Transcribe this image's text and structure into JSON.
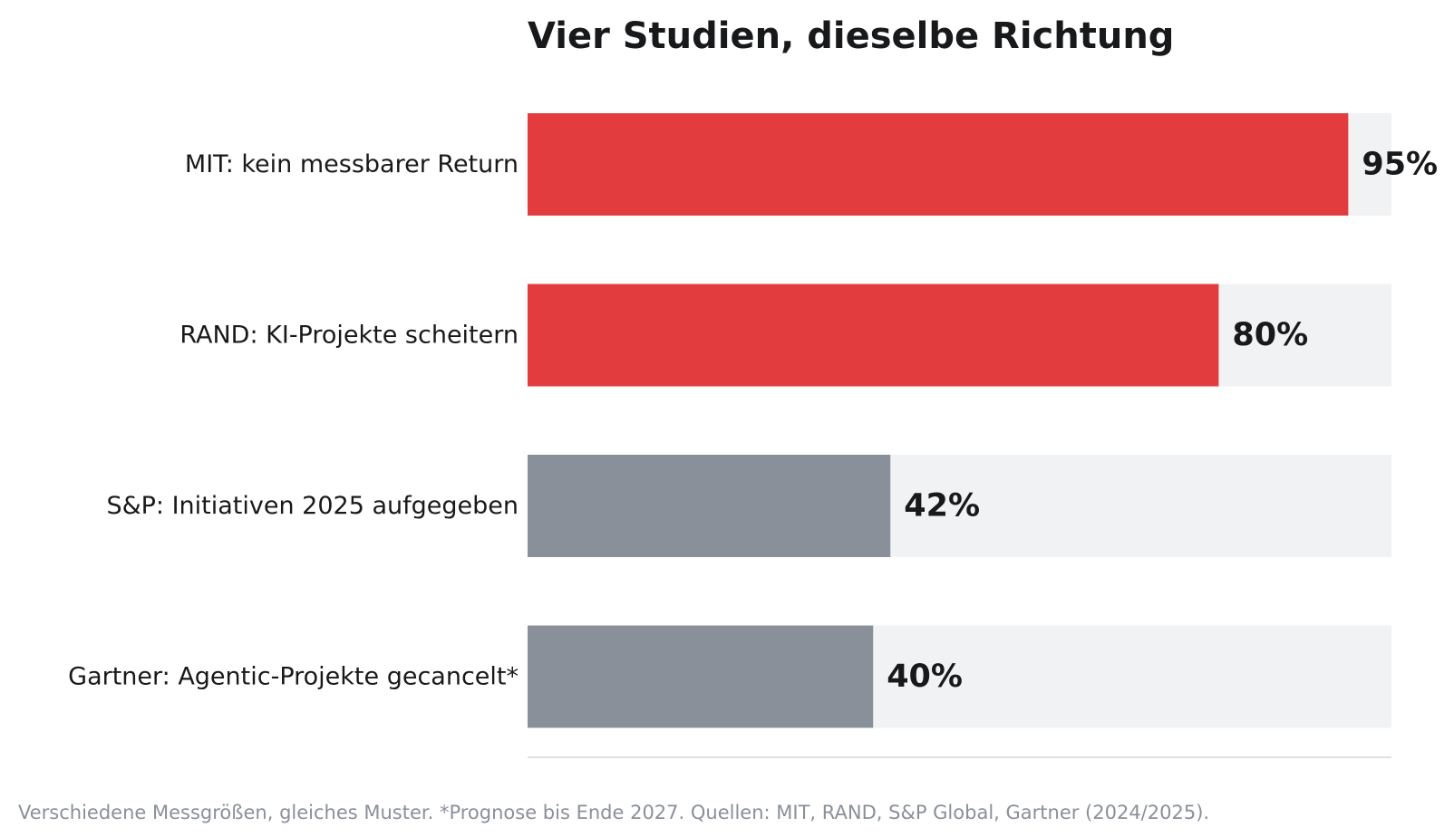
{
  "chart_data": {
    "type": "bar",
    "orientation": "horizontal",
    "title": "Vier Studien, dieselbe Richtung",
    "categories": [
      "MIT: kein messbarer Return",
      "RAND: KI-Projekte scheitern",
      "S&P: Initiativen 2025 aufgegeben",
      "Gartner: Agentic-Projekte gecancelt*"
    ],
    "values": [
      95,
      80,
      42,
      40
    ],
    "value_labels": [
      "95%",
      "80%",
      "42%",
      "40%"
    ],
    "xlim": [
      0,
      100
    ],
    "unit": "%",
    "grid": false,
    "legend": "none",
    "colors": {
      "highlight": "#e23c3e",
      "neutral": "#8a9099",
      "track": "#f1f2f4",
      "axis": "#e0e0e0",
      "text": "#18191b",
      "muted": "#8a9099"
    },
    "bar_colors": [
      "#e23c3e",
      "#e23c3e",
      "#8a9099",
      "#8a9099"
    ],
    "footnote": "Verschiedene Messgrößen, gleiches Muster. *Prognose bis Ende 2027. Quellen: MIT, RAND, S&P Global, Gartner (2024/2025)."
  }
}
